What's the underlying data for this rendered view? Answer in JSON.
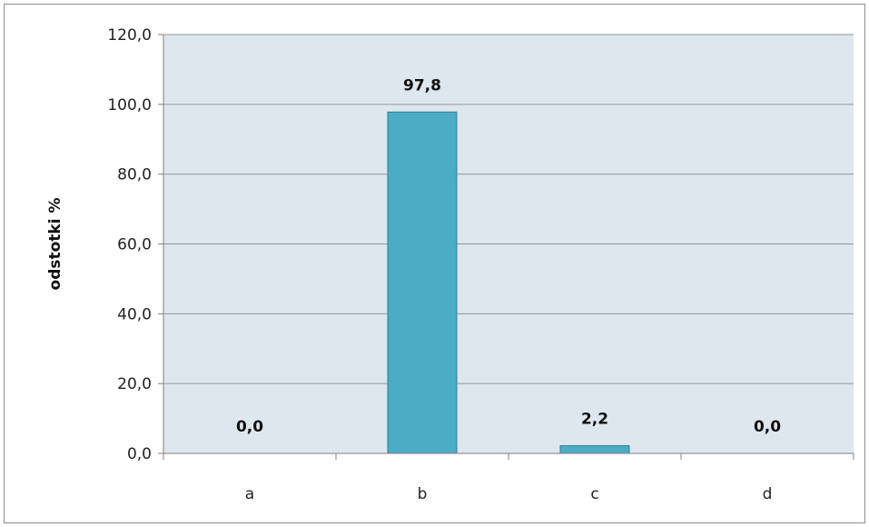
{
  "chart_data": {
    "type": "bar",
    "title": "",
    "xlabel": "",
    "ylabel": "odstotki %",
    "categories": [
      "a",
      "b",
      "c",
      "d"
    ],
    "values": [
      0.0,
      97.8,
      2.2,
      0.0
    ],
    "data_labels": [
      "0,0",
      "97,8",
      "2,2",
      "0,0"
    ],
    "ylim": [
      0,
      120
    ],
    "yticks": [
      0,
      20,
      40,
      60,
      80,
      100,
      120
    ],
    "ytick_labels": [
      "0,0",
      "20,0",
      "40,0",
      "60,0",
      "80,0",
      "100,0",
      "120,0"
    ],
    "grid": true,
    "legend": "none",
    "colors": {
      "bar_fill": "#4bacc6",
      "bar_stroke": "#2f7f94",
      "plot_background": "#dfe7ee",
      "grid": "#8f979c"
    }
  }
}
